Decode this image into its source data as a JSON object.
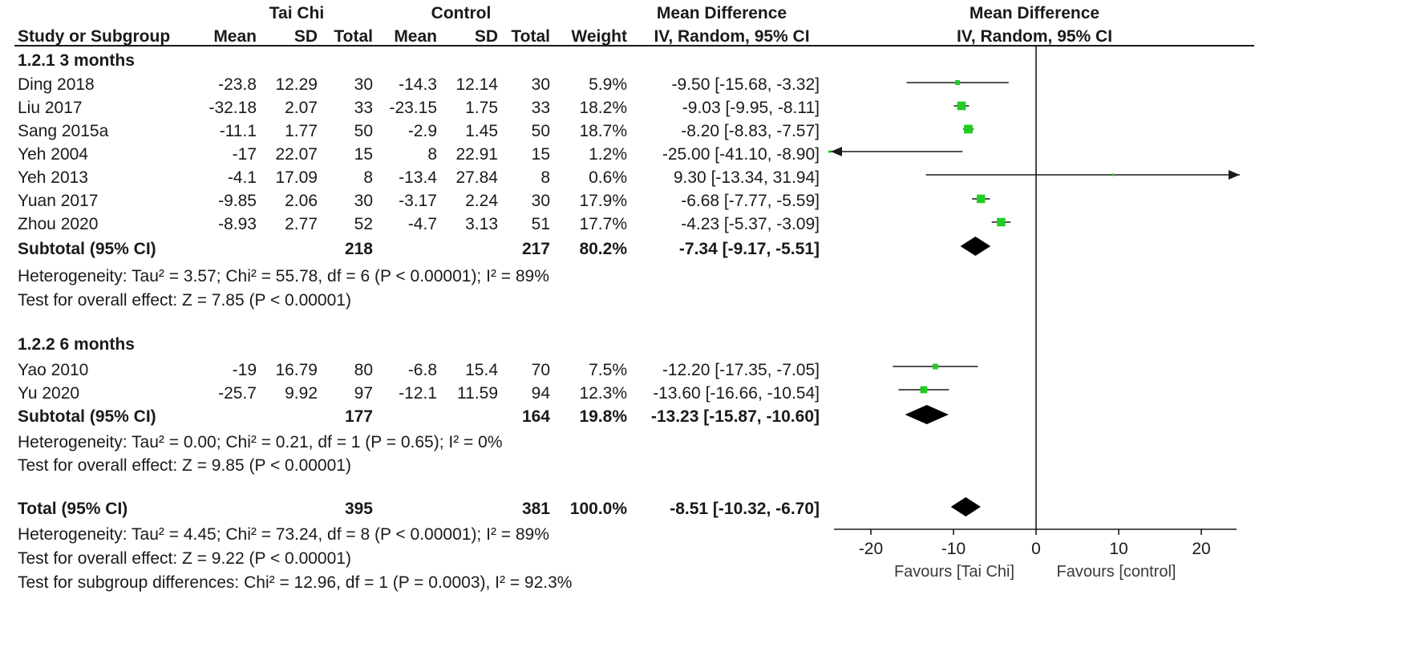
{
  "header": {
    "group1": "Tai Chi",
    "group2": "Control",
    "md_col": "Mean Difference",
    "md_method": "IV, Random, 95% CI",
    "plot_title": "Mean Difference",
    "plot_method": "IV, Random, 95% CI",
    "columns": {
      "study": "Study or Subgroup",
      "mean1": "Mean",
      "sd1": "SD",
      "total1": "Total",
      "mean2": "Mean",
      "sd2": "SD",
      "total2": "Total",
      "weight": "Weight"
    }
  },
  "subgroups": [
    {
      "title": "1.2.1 3 months",
      "studies": [
        {
          "study": "Ding 2018",
          "mean1": "-23.8",
          "sd1": "12.29",
          "n1": "30",
          "mean2": "-14.3",
          "sd2": "12.14",
          "n2": "30",
          "weight": "5.9%",
          "ci": "-9.50 [-15.68, -3.32]"
        },
        {
          "study": "Liu 2017",
          "mean1": "-32.18",
          "sd1": "2.07",
          "n1": "33",
          "mean2": "-23.15",
          "sd2": "1.75",
          "n2": "33",
          "weight": "18.2%",
          "ci": "-9.03 [-9.95, -8.11]"
        },
        {
          "study": "Sang 2015a",
          "mean1": "-11.1",
          "sd1": "1.77",
          "n1": "50",
          "mean2": "-2.9",
          "sd2": "1.45",
          "n2": "50",
          "weight": "18.7%",
          "ci": "-8.20 [-8.83, -7.57]"
        },
        {
          "study": "Yeh 2004",
          "mean1": "-17",
          "sd1": "22.07",
          "n1": "15",
          "mean2": "8",
          "sd2": "22.91",
          "n2": "15",
          "weight": "1.2%",
          "ci": "-25.00 [-41.10, -8.90]"
        },
        {
          "study": "Yeh 2013",
          "mean1": "-4.1",
          "sd1": "17.09",
          "n1": "8",
          "mean2": "-13.4",
          "sd2": "27.84",
          "n2": "8",
          "weight": "0.6%",
          "ci": "9.30 [-13.34, 31.94]"
        },
        {
          "study": "Yuan 2017",
          "mean1": "-9.85",
          "sd1": "2.06",
          "n1": "30",
          "mean2": "-3.17",
          "sd2": "2.24",
          "n2": "30",
          "weight": "17.9%",
          "ci": "-6.68 [-7.77, -5.59]"
        },
        {
          "study": "Zhou 2020",
          "mean1": "-8.93",
          "sd1": "2.77",
          "n1": "52",
          "mean2": "-4.7",
          "sd2": "3.13",
          "n2": "51",
          "weight": "17.7%",
          "ci": "-4.23 [-5.37, -3.09]"
        }
      ],
      "subtotal": {
        "label": "Subtotal (95% CI)",
        "n1": "218",
        "n2": "217",
        "weight": "80.2%",
        "ci": "-7.34 [-9.17, -5.51]"
      },
      "heterogeneity": "Heterogeneity: Tau² = 3.57; Chi² = 55.78, df = 6 (P < 0.00001); I² = 89%",
      "overall_effect": "Test for overall effect: Z = 7.85 (P < 0.00001)"
    },
    {
      "title": "1.2.2 6 months",
      "studies": [
        {
          "study": "Yao 2010",
          "mean1": "-19",
          "sd1": "16.79",
          "n1": "80",
          "mean2": "-6.8",
          "sd2": "15.4",
          "n2": "70",
          "weight": "7.5%",
          "ci": "-12.20 [-17.35, -7.05]"
        },
        {
          "study": "Yu 2020",
          "mean1": "-25.7",
          "sd1": "9.92",
          "n1": "97",
          "mean2": "-12.1",
          "sd2": "11.59",
          "n2": "94",
          "weight": "12.3%",
          "ci": "-13.60 [-16.66, -10.54]"
        }
      ],
      "subtotal": {
        "label": "Subtotal (95% CI)",
        "n1": "177",
        "n2": "164",
        "weight": "19.8%",
        "ci": "-13.23 [-15.87, -10.60]"
      },
      "heterogeneity": "Heterogeneity: Tau² = 0.00; Chi² = 0.21, df = 1 (P = 0.65); I² = 0%",
      "overall_effect": "Test for overall effect: Z = 9.85 (P < 0.00001)"
    }
  ],
  "total": {
    "label": "Total (95% CI)",
    "n1": "395",
    "n2": "381",
    "weight": "100.0%",
    "ci": "-8.51 [-10.32, -6.70]",
    "heterogeneity": "Heterogeneity: Tau² = 4.45; Chi² = 73.24, df = 8 (P < 0.00001); I² = 89%",
    "overall_effect": "Test for overall effect: Z = 9.22 (P < 0.00001)",
    "subgroup_diff": "Test for subgroup differences: Chi² = 12.96, df = 1 (P = 0.0003), I² = 92.3%"
  },
  "colors": {
    "square": "#22cc22",
    "ink": "#1a1a1a"
  },
  "chart_data": {
    "type": "forest",
    "title": "Mean Difference",
    "subtitle": "IV, Random, 95% CI",
    "xlim": [
      -25,
      25
    ],
    "ticks": [
      -20,
      -10,
      0,
      10,
      20
    ],
    "xlabel_left": "Favours [Tai Chi]",
    "xlabel_right": "Favours [control]",
    "studies": [
      {
        "name": "Ding 2018",
        "est": -9.5,
        "lo": -15.68,
        "hi": -3.32,
        "weight": 5.9
      },
      {
        "name": "Liu 2017",
        "est": -9.03,
        "lo": -9.95,
        "hi": -8.11,
        "weight": 18.2
      },
      {
        "name": "Sang 2015a",
        "est": -8.2,
        "lo": -8.83,
        "hi": -7.57,
        "weight": 18.7
      },
      {
        "name": "Yeh 2004",
        "est": -25.0,
        "lo": -41.1,
        "hi": -8.9,
        "weight": 1.2
      },
      {
        "name": "Yeh 2013",
        "est": 9.3,
        "lo": -13.34,
        "hi": 31.94,
        "weight": 0.6
      },
      {
        "name": "Yuan 2017",
        "est": -6.68,
        "lo": -7.77,
        "hi": -5.59,
        "weight": 17.9
      },
      {
        "name": "Zhou 2020",
        "est": -4.23,
        "lo": -5.37,
        "hi": -3.09,
        "weight": 17.7
      },
      {
        "name": "Subtotal 3 months",
        "est": -7.34,
        "lo": -9.17,
        "hi": -5.51,
        "weight": 80.2,
        "diamond": true
      },
      {
        "name": "Yao 2010",
        "est": -12.2,
        "lo": -17.35,
        "hi": -7.05,
        "weight": 7.5
      },
      {
        "name": "Yu 2020",
        "est": -13.6,
        "lo": -16.66,
        "hi": -10.54,
        "weight": 12.3
      },
      {
        "name": "Subtotal 6 months",
        "est": -13.23,
        "lo": -15.87,
        "hi": -10.6,
        "weight": 19.8,
        "diamond": true
      },
      {
        "name": "Total",
        "est": -8.51,
        "lo": -10.32,
        "hi": -6.7,
        "weight": 100.0,
        "diamond": true
      }
    ]
  }
}
